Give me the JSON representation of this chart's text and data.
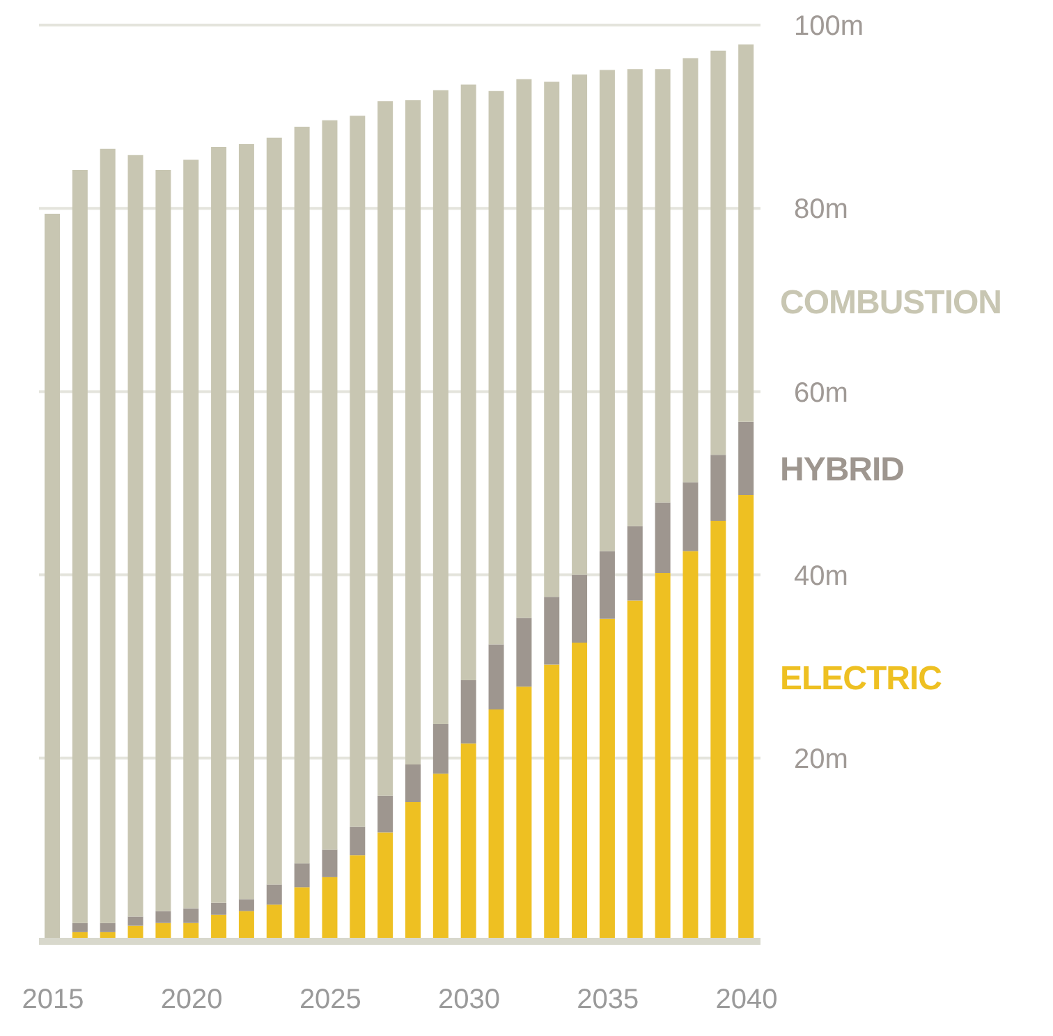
{
  "chart_data": {
    "type": "bar",
    "stacked": true,
    "categories": [
      "2015",
      null,
      null,
      null,
      null,
      "2020",
      null,
      null,
      null,
      null,
      "2025",
      null,
      null,
      null,
      null,
      "2030",
      null,
      null,
      null,
      null,
      "2035",
      null,
      null,
      null,
      null,
      "2040"
    ],
    "series": [
      {
        "name": "ELECTRIC",
        "color": "#eec022",
        "values": [
          0,
          1.0,
          1.0,
          1.7,
          2.0,
          2.0,
          2.9,
          3.3,
          4.0,
          5.9,
          7.0,
          9.4,
          11.9,
          15.2,
          18.3,
          21.6,
          25.3,
          27.8,
          30.2,
          32.6,
          35.2,
          37.2,
          40.2,
          42.6,
          45.9,
          48.7
        ]
      },
      {
        "name": "HYBRID",
        "color": "#9e968f",
        "values": [
          0,
          1.0,
          1.0,
          1.0,
          1.3,
          1.6,
          1.3,
          1.3,
          2.2,
          2.6,
          3.0,
          3.1,
          4.0,
          4.1,
          5.4,
          6.9,
          7.1,
          7.5,
          7.4,
          7.4,
          7.4,
          8.1,
          7.7,
          7.5,
          7.2,
          8.0
        ]
      },
      {
        "name": "COMBUSTION",
        "color": "#c8c6b2",
        "values": [
          79.4,
          82.2,
          84.5,
          83.1,
          80.9,
          81.7,
          82.5,
          82.4,
          81.5,
          80.4,
          79.6,
          77.6,
          75.8,
          72.5,
          69.2,
          65.0,
          60.4,
          58.8,
          56.2,
          54.6,
          52.5,
          49.9,
          47.3,
          46.3,
          44.1,
          41.2
        ]
      }
    ],
    "ylim": [
      0,
      100
    ],
    "yticks": [
      {
        "value": 0,
        "label": null
      },
      {
        "value": 20,
        "label": "20m"
      },
      {
        "value": 40,
        "label": "40m"
      },
      {
        "value": 60,
        "label": "60m"
      },
      {
        "value": 80,
        "label": "80m"
      },
      {
        "value": 100,
        "label": "100m"
      }
    ],
    "grid": "y",
    "legend": "right"
  }
}
